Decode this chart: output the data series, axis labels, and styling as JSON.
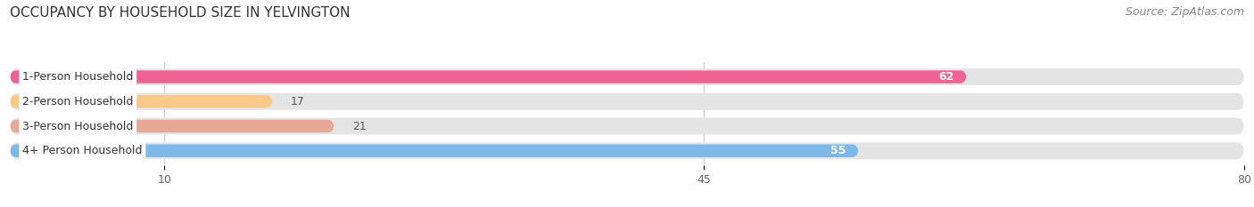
{
  "title": "OCCUPANCY BY HOUSEHOLD SIZE IN YELVINGTON",
  "source": "Source: ZipAtlas.com",
  "categories": [
    "1-Person Household",
    "2-Person Household",
    "3-Person Household",
    "4+ Person Household"
  ],
  "values": [
    62,
    17,
    21,
    55
  ],
  "bar_colors": [
    "#f06292",
    "#f9c98a",
    "#e8a898",
    "#7db8e8"
  ],
  "track_color": "#e4e4e4",
  "xlim": [
    0,
    80
  ],
  "xticks": [
    10,
    45,
    80
  ],
  "value_label_color_inside": "#ffffff",
  "value_label_color_outside": "#555555",
  "title_fontsize": 11,
  "source_fontsize": 9,
  "bar_label_fontsize": 9,
  "tick_fontsize": 9,
  "background_color": "#ffffff",
  "threshold_inside": 30
}
